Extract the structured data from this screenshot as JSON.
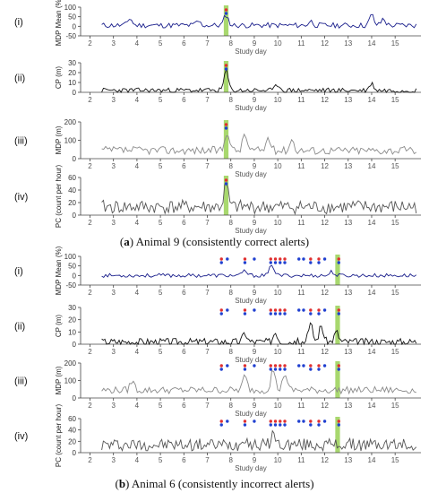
{
  "figure": {
    "caption_a": {
      "label": "a",
      "text": " Animal 9 (consistently correct alerts)"
    },
    "caption_b": {
      "label": "b",
      "text": " Animal 6 (consistently incorrect alerts)"
    }
  },
  "chart_data": [
    {
      "id": "a-i",
      "type": "line",
      "panel": "(i)",
      "ylabel": "MDP Mean (%)",
      "xlabel": "Study day",
      "xlim": [
        1.6,
        16.1
      ],
      "ylim": [
        -50,
        100
      ],
      "yticks": [
        -50,
        0,
        50,
        100
      ],
      "xticks": [
        2,
        3,
        4,
        5,
        6,
        7,
        8,
        9,
        10,
        11,
        12,
        13,
        14,
        15
      ],
      "color": "#1a1f8c",
      "x_start": 2.5,
      "x_end": 15.9,
      "samples": 160,
      "baseline": 5,
      "noise": 14,
      "seed": 11,
      "peaks": [
        [
          3.7,
          38
        ],
        [
          7.8,
          55
        ],
        [
          14.0,
          55
        ],
        [
          14.5,
          35
        ],
        [
          11.4,
          22
        ],
        [
          6.6,
          22
        ]
      ],
      "highlights": [
        [
          7.7,
          7.9
        ]
      ],
      "alerts": [
        {
          "x": 7.8,
          "colors": [
            "#e03030",
            "#2040d0"
          ]
        }
      ]
    },
    {
      "id": "a-ii",
      "type": "line",
      "panel": "(ii)",
      "ylabel": "CP (m)",
      "xlabel": "Study day",
      "xlim": [
        1.6,
        16.1
      ],
      "ylim": [
        0,
        30
      ],
      "yticks": [
        0,
        10,
        20,
        30
      ],
      "xticks": [
        2,
        3,
        4,
        5,
        6,
        7,
        8,
        9,
        10,
        11,
        12,
        13,
        14,
        15
      ],
      "color": "#111111",
      "x_start": 2.5,
      "x_end": 15.9,
      "samples": 180,
      "baseline": 2,
      "noise": 2.5,
      "seed": 23,
      "peaks": [
        [
          7.8,
          20
        ],
        [
          10.0,
          6
        ],
        [
          14.0,
          7
        ]
      ],
      "highlights": [
        [
          7.7,
          7.9
        ]
      ],
      "alerts": [
        {
          "x": 7.8,
          "colors": [
            "#e03030",
            "#2040d0"
          ]
        }
      ]
    },
    {
      "id": "a-iii",
      "type": "line",
      "panel": "(iii)",
      "ylabel": "MDP (m)",
      "xlabel": "Study day",
      "xlim": [
        1.6,
        16.1
      ],
      "ylim": [
        0,
        200
      ],
      "yticks": [
        0,
        100,
        200
      ],
      "xticks": [
        2,
        3,
        4,
        5,
        6,
        7,
        8,
        9,
        10,
        11,
        12,
        13,
        14,
        15
      ],
      "color": "#8a8a8a",
      "x_start": 2.5,
      "x_end": 15.9,
      "samples": 160,
      "baseline": 45,
      "noise": 22,
      "seed": 37,
      "peaks": [
        [
          7.85,
          110
        ],
        [
          8.6,
          90
        ],
        [
          9.6,
          70
        ],
        [
          10.6,
          60
        ]
      ],
      "highlights": [
        [
          7.7,
          7.9
        ]
      ],
      "alerts": [
        {
          "x": 7.8,
          "colors": [
            "#e03030",
            "#2040d0"
          ]
        }
      ]
    },
    {
      "id": "a-iv",
      "type": "line",
      "panel": "(iv)",
      "ylabel": "PC (count per hour)",
      "xlabel": "Study day",
      "xlim": [
        1.6,
        16.1
      ],
      "ylim": [
        0,
        60
      ],
      "yticks": [
        0,
        20,
        40,
        60
      ],
      "xticks": [
        2,
        3,
        4,
        5,
        6,
        7,
        8,
        9,
        10,
        11,
        12,
        13,
        14,
        15
      ],
      "color": "#555555",
      "x_start": 2.5,
      "x_end": 15.9,
      "samples": 180,
      "baseline": 13,
      "noise": 11,
      "seed": 41,
      "peaks": [
        [
          7.8,
          35
        ]
      ],
      "highlights": [
        [
          7.7,
          7.9
        ]
      ],
      "alerts": [
        {
          "x": 7.8,
          "colors": [
            "#e03030",
            "#2040d0"
          ]
        }
      ]
    },
    {
      "id": "b-i",
      "type": "line",
      "panel": "(i)",
      "ylabel": "MDP Mean (%)",
      "xlabel": "Study day",
      "xlim": [
        1.6,
        16.1
      ],
      "ylim": [
        -50,
        100
      ],
      "yticks": [
        -50,
        0,
        50,
        100
      ],
      "xticks": [
        2,
        3,
        4,
        5,
        6,
        7,
        8,
        9,
        10,
        11,
        12,
        13,
        14,
        15
      ],
      "color": "#1a1f8c",
      "x_start": 2.5,
      "x_end": 15.9,
      "samples": 160,
      "baseline": 0,
      "noise": 10,
      "seed": 53,
      "peaks": [
        [
          9.75,
          60
        ],
        [
          8.6,
          25
        ],
        [
          12.3,
          20
        ]
      ],
      "highlights": [
        [
          12.45,
          12.65
        ]
      ],
      "alerts": [
        {
          "x": 7.6,
          "colors": [
            "#e03030",
            "#2040d0"
          ]
        },
        {
          "x": 7.85,
          "colors": [
            "#2040d0"
          ]
        },
        {
          "x": 8.6,
          "colors": [
            "#e03030",
            "#2040d0"
          ]
        },
        {
          "x": 9.0,
          "colors": [
            "#2040d0"
          ]
        },
        {
          "x": 9.7,
          "colors": [
            "#e03030",
            "#2040d0"
          ]
        },
        {
          "x": 9.9,
          "colors": [
            "#e03030",
            "#2040d0"
          ]
        },
        {
          "x": 10.1,
          "colors": [
            "#e03030",
            "#2040d0"
          ]
        },
        {
          "x": 10.3,
          "colors": [
            "#e03030",
            "#2040d0"
          ]
        },
        {
          "x": 10.9,
          "colors": [
            "#2040d0"
          ]
        },
        {
          "x": 11.1,
          "colors": [
            "#2040d0"
          ]
        },
        {
          "x": 11.4,
          "colors": [
            "#e03030",
            "#2040d0"
          ]
        },
        {
          "x": 11.75,
          "colors": [
            "#e03030",
            "#2040d0"
          ]
        },
        {
          "x": 12.0,
          "colors": [
            "#2040d0"
          ]
        },
        {
          "x": 12.6,
          "colors": [
            "#e03030",
            "#2040d0"
          ]
        }
      ]
    },
    {
      "id": "b-ii",
      "type": "line",
      "panel": "(ii)",
      "ylabel": "CP (m)",
      "xlabel": "Study day",
      "xlim": [
        1.6,
        16.1
      ],
      "ylim": [
        0,
        30
      ],
      "yticks": [
        0,
        10,
        20,
        30
      ],
      "xticks": [
        2,
        3,
        4,
        5,
        6,
        7,
        8,
        9,
        10,
        11,
        12,
        13,
        14,
        15
      ],
      "color": "#111111",
      "x_start": 2.5,
      "x_end": 15.9,
      "samples": 200,
      "baseline": 2,
      "noise": 3,
      "seed": 67,
      "peaks": [
        [
          11.4,
          14
        ],
        [
          11.85,
          13
        ],
        [
          9.9,
          8
        ],
        [
          8.6,
          7
        ],
        [
          12.5,
          8
        ]
      ],
      "highlights": [
        [
          12.45,
          12.65
        ]
      ],
      "alerts": [
        {
          "x": 7.6,
          "colors": [
            "#e03030",
            "#2040d0"
          ]
        },
        {
          "x": 7.85,
          "colors": [
            "#2040d0"
          ]
        },
        {
          "x": 8.6,
          "colors": [
            "#e03030",
            "#2040d0"
          ]
        },
        {
          "x": 9.0,
          "colors": [
            "#2040d0"
          ]
        },
        {
          "x": 9.7,
          "colors": [
            "#e03030",
            "#2040d0"
          ]
        },
        {
          "x": 9.9,
          "colors": [
            "#e03030",
            "#2040d0"
          ]
        },
        {
          "x": 10.1,
          "colors": [
            "#e03030",
            "#2040d0"
          ]
        },
        {
          "x": 10.3,
          "colors": [
            "#e03030",
            "#2040d0"
          ]
        },
        {
          "x": 10.9,
          "colors": [
            "#2040d0"
          ]
        },
        {
          "x": 11.1,
          "colors": [
            "#2040d0"
          ]
        },
        {
          "x": 11.4,
          "colors": [
            "#e03030",
            "#2040d0"
          ]
        },
        {
          "x": 11.75,
          "colors": [
            "#e03030",
            "#2040d0"
          ]
        },
        {
          "x": 12.0,
          "colors": [
            "#2040d0"
          ]
        },
        {
          "x": 12.6,
          "colors": [
            "#e03030",
            "#2040d0"
          ]
        }
      ]
    },
    {
      "id": "b-iii",
      "type": "line",
      "panel": "(iii)",
      "ylabel": "MDP (m)",
      "xlabel": "Study day",
      "xlim": [
        1.6,
        16.1
      ],
      "ylim": [
        0,
        200
      ],
      "yticks": [
        0,
        100,
        200
      ],
      "xticks": [
        2,
        3,
        4,
        5,
        6,
        7,
        8,
        9,
        10,
        11,
        12,
        13,
        14,
        15
      ],
      "color": "#8a8a8a",
      "x_start": 2.5,
      "x_end": 15.9,
      "samples": 160,
      "baseline": 45,
      "noise": 20,
      "seed": 79,
      "peaks": [
        [
          9.8,
          120
        ],
        [
          10.3,
          100
        ],
        [
          8.6,
          80
        ],
        [
          3.8,
          55
        ]
      ],
      "highlights": [
        [
          12.45,
          12.65
        ]
      ],
      "alerts": [
        {
          "x": 7.6,
          "colors": [
            "#e03030",
            "#2040d0"
          ]
        },
        {
          "x": 7.85,
          "colors": [
            "#2040d0"
          ]
        },
        {
          "x": 8.6,
          "colors": [
            "#e03030",
            "#2040d0"
          ]
        },
        {
          "x": 9.0,
          "colors": [
            "#2040d0"
          ]
        },
        {
          "x": 9.7,
          "colors": [
            "#e03030",
            "#2040d0"
          ]
        },
        {
          "x": 9.9,
          "colors": [
            "#e03030",
            "#2040d0"
          ]
        },
        {
          "x": 10.1,
          "colors": [
            "#e03030",
            "#2040d0"
          ]
        },
        {
          "x": 10.3,
          "colors": [
            "#e03030",
            "#2040d0"
          ]
        },
        {
          "x": 10.9,
          "colors": [
            "#2040d0"
          ]
        },
        {
          "x": 11.1,
          "colors": [
            "#2040d0"
          ]
        },
        {
          "x": 11.4,
          "colors": [
            "#e03030",
            "#2040d0"
          ]
        },
        {
          "x": 11.75,
          "colors": [
            "#e03030",
            "#2040d0"
          ]
        },
        {
          "x": 12.0,
          "colors": [
            "#2040d0"
          ]
        },
        {
          "x": 12.6,
          "colors": [
            "#e03030",
            "#2040d0"
          ]
        }
      ]
    },
    {
      "id": "b-iv",
      "type": "line",
      "panel": "(iv)",
      "ylabel": "PC (count per hour)",
      "xlabel": "Study day",
      "xlim": [
        1.6,
        16.1
      ],
      "ylim": [
        0,
        60
      ],
      "yticks": [
        0,
        20,
        40,
        60
      ],
      "xticks": [
        2,
        3,
        4,
        5,
        6,
        7,
        8,
        9,
        10,
        11,
        12,
        13,
        14,
        15
      ],
      "color": "#555555",
      "x_start": 2.5,
      "x_end": 15.9,
      "samples": 200,
      "baseline": 14,
      "noise": 11,
      "seed": 97,
      "peaks": [
        [
          9.8,
          20
        ],
        [
          8.6,
          15
        ]
      ],
      "highlights": [
        [
          12.45,
          12.65
        ]
      ],
      "alerts": [
        {
          "x": 7.6,
          "colors": [
            "#e03030",
            "#2040d0"
          ]
        },
        {
          "x": 7.85,
          "colors": [
            "#2040d0"
          ]
        },
        {
          "x": 8.6,
          "colors": [
            "#e03030",
            "#2040d0"
          ]
        },
        {
          "x": 9.0,
          "colors": [
            "#2040d0"
          ]
        },
        {
          "x": 9.7,
          "colors": [
            "#e03030",
            "#2040d0"
          ]
        },
        {
          "x": 9.9,
          "colors": [
            "#e03030",
            "#2040d0"
          ]
        },
        {
          "x": 10.1,
          "colors": [
            "#e03030",
            "#2040d0"
          ]
        },
        {
          "x": 10.3,
          "colors": [
            "#e03030",
            "#2040d0"
          ]
        },
        {
          "x": 10.9,
          "colors": [
            "#2040d0"
          ]
        },
        {
          "x": 11.1,
          "colors": [
            "#2040d0"
          ]
        },
        {
          "x": 11.4,
          "colors": [
            "#e03030",
            "#2040d0"
          ]
        },
        {
          "x": 11.75,
          "colors": [
            "#e03030",
            "#2040d0"
          ]
        },
        {
          "x": 12.0,
          "colors": [
            "#2040d0"
          ]
        },
        {
          "x": 12.6,
          "colors": [
            "#e03030",
            "#2040d0"
          ]
        }
      ]
    }
  ],
  "colors": {
    "highlight": "#a8d86e",
    "axis": "#444444",
    "tick_text": "#555555"
  }
}
